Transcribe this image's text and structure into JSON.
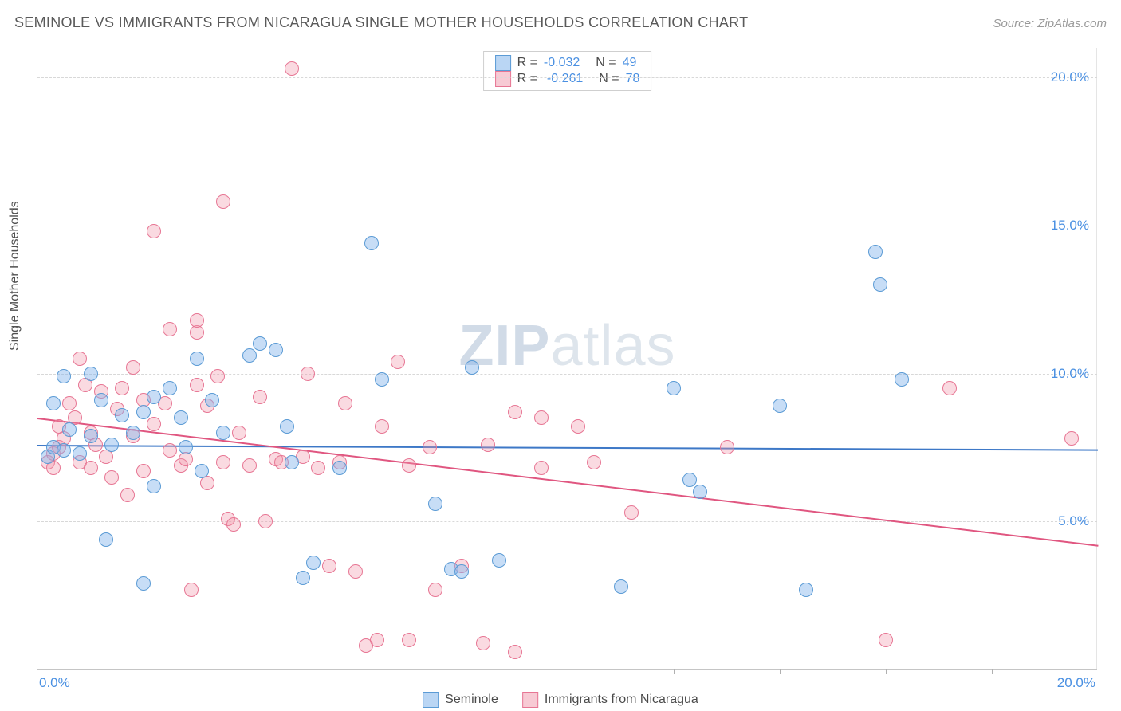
{
  "title": "SEMINOLE VS IMMIGRANTS FROM NICARAGUA SINGLE MOTHER HOUSEHOLDS CORRELATION CHART",
  "source": "Source: ZipAtlas.com",
  "ylabel": "Single Mother Households",
  "watermark_zip": "ZIP",
  "watermark_rest": "atlas",
  "chart": {
    "type": "scatter",
    "xlim": [
      0,
      20
    ],
    "ylim": [
      0,
      21
    ],
    "xticks_minor": [
      2,
      4,
      6,
      8,
      10,
      12,
      14,
      16,
      18
    ],
    "xtick_labels": {
      "min": "0.0%",
      "max": "20.0%"
    },
    "yticks": [
      {
        "v": 5,
        "label": "5.0%"
      },
      {
        "v": 10,
        "label": "10.0%"
      },
      {
        "v": 15,
        "label": "15.0%"
      },
      {
        "v": 20,
        "label": "20.0%"
      }
    ],
    "marker_size": 18,
    "grid_color": "#d8d8d8",
    "axis_color": "#c5c5c5",
    "background_color": "#ffffff",
    "series": [
      {
        "name": "Seminole",
        "color_fill": "rgba(130,180,235,0.45)",
        "color_stroke": "#5b9bd5",
        "regression": {
          "y_at_x0": 7.6,
          "y_at_x20": 7.45,
          "color": "#3d78c7"
        },
        "stats": {
          "R": "-0.032",
          "N": "49"
        },
        "points": [
          [
            0.2,
            7.2
          ],
          [
            0.3,
            7.5
          ],
          [
            0.3,
            9.0
          ],
          [
            0.5,
            9.9
          ],
          [
            0.5,
            7.4
          ],
          [
            0.8,
            7.3
          ],
          [
            1.0,
            10.0
          ],
          [
            1.2,
            9.1
          ],
          [
            1.3,
            4.4
          ],
          [
            1.4,
            7.6
          ],
          [
            1.6,
            8.6
          ],
          [
            1.8,
            8.0
          ],
          [
            2.0,
            8.7
          ],
          [
            2.0,
            2.9
          ],
          [
            2.2,
            6.2
          ],
          [
            2.2,
            9.2
          ],
          [
            2.7,
            8.5
          ],
          [
            2.8,
            7.5
          ],
          [
            3.0,
            10.5
          ],
          [
            3.1,
            6.7
          ],
          [
            3.5,
            8.0
          ],
          [
            4.0,
            10.6
          ],
          [
            4.2,
            11.0
          ],
          [
            4.5,
            10.8
          ],
          [
            4.8,
            7.0
          ],
          [
            5.0,
            3.1
          ],
          [
            5.2,
            3.6
          ],
          [
            5.7,
            6.8
          ],
          [
            6.3,
            14.4
          ],
          [
            6.5,
            9.8
          ],
          [
            7.5,
            5.6
          ],
          [
            7.8,
            3.4
          ],
          [
            8.0,
            3.3
          ],
          [
            8.2,
            10.2
          ],
          [
            8.7,
            3.7
          ],
          [
            12.0,
            9.5
          ],
          [
            12.3,
            6.4
          ],
          [
            12.5,
            6.0
          ],
          [
            11.0,
            2.8
          ],
          [
            14.0,
            8.9
          ],
          [
            14.5,
            2.7
          ],
          [
            15.8,
            14.1
          ],
          [
            15.9,
            13.0
          ],
          [
            16.3,
            9.8
          ],
          [
            0.6,
            8.1
          ],
          [
            1.0,
            7.9
          ],
          [
            2.5,
            9.5
          ],
          [
            3.3,
            9.1
          ],
          [
            4.7,
            8.2
          ]
        ]
      },
      {
        "name": "Immigrants from Nicaragua",
        "color_fill": "rgba(240,150,170,0.35)",
        "color_stroke": "#e77694",
        "regression": {
          "y_at_x0": 8.5,
          "y_at_x20": 4.2,
          "color": "#e05680"
        },
        "stats": {
          "R": "-0.261",
          "N": "78"
        },
        "points": [
          [
            0.2,
            7.0
          ],
          [
            0.3,
            7.3
          ],
          [
            0.4,
            7.5
          ],
          [
            0.4,
            8.2
          ],
          [
            0.5,
            7.8
          ],
          [
            0.6,
            9.0
          ],
          [
            0.7,
            8.5
          ],
          [
            0.8,
            7.0
          ],
          [
            0.8,
            10.5
          ],
          [
            0.9,
            9.6
          ],
          [
            1.0,
            6.8
          ],
          [
            1.0,
            8.0
          ],
          [
            1.2,
            9.4
          ],
          [
            1.3,
            7.2
          ],
          [
            1.4,
            6.5
          ],
          [
            1.5,
            8.8
          ],
          [
            1.6,
            9.5
          ],
          [
            1.7,
            5.9
          ],
          [
            1.8,
            10.2
          ],
          [
            1.8,
            7.9
          ],
          [
            2.0,
            9.1
          ],
          [
            2.0,
            6.7
          ],
          [
            2.2,
            8.3
          ],
          [
            2.2,
            14.8
          ],
          [
            2.4,
            9.0
          ],
          [
            2.5,
            7.4
          ],
          [
            2.5,
            11.5
          ],
          [
            2.7,
            6.9
          ],
          [
            2.8,
            7.1
          ],
          [
            3.0,
            9.6
          ],
          [
            3.0,
            11.4
          ],
          [
            3.0,
            11.8
          ],
          [
            3.2,
            8.9
          ],
          [
            3.2,
            6.3
          ],
          [
            3.5,
            15.8
          ],
          [
            3.5,
            7.0
          ],
          [
            3.6,
            5.1
          ],
          [
            3.7,
            4.9
          ],
          [
            3.8,
            8.0
          ],
          [
            4.0,
            6.9
          ],
          [
            4.2,
            9.2
          ],
          [
            4.3,
            5.0
          ],
          [
            4.5,
            7.1
          ],
          [
            4.6,
            7.0
          ],
          [
            4.8,
            20.3
          ],
          [
            5.0,
            7.2
          ],
          [
            5.1,
            10.0
          ],
          [
            5.3,
            6.8
          ],
          [
            5.5,
            3.5
          ],
          [
            5.7,
            7.0
          ],
          [
            5.8,
            9.0
          ],
          [
            6.0,
            3.3
          ],
          [
            6.2,
            0.8
          ],
          [
            6.4,
            1.0
          ],
          [
            6.5,
            8.2
          ],
          [
            7.0,
            6.9
          ],
          [
            7.0,
            1.0
          ],
          [
            7.4,
            7.5
          ],
          [
            7.5,
            2.7
          ],
          [
            8.0,
            3.5
          ],
          [
            8.4,
            0.9
          ],
          [
            8.5,
            7.6
          ],
          [
            9.0,
            8.7
          ],
          [
            9.0,
            0.6
          ],
          [
            9.5,
            6.8
          ],
          [
            9.5,
            8.5
          ],
          [
            10.2,
            8.2
          ],
          [
            10.5,
            7.0
          ],
          [
            11.2,
            5.3
          ],
          [
            13.0,
            7.5
          ],
          [
            16.0,
            1.0
          ],
          [
            17.2,
            9.5
          ],
          [
            19.5,
            7.8
          ],
          [
            2.9,
            2.7
          ],
          [
            1.1,
            7.6
          ],
          [
            0.3,
            6.8
          ],
          [
            6.8,
            10.4
          ],
          [
            3.4,
            9.9
          ]
        ]
      }
    ],
    "legend_bottom": [
      {
        "swatch": "blue",
        "label": "Seminole"
      },
      {
        "swatch": "pink",
        "label": "Immigrants from Nicaragua"
      }
    ]
  }
}
